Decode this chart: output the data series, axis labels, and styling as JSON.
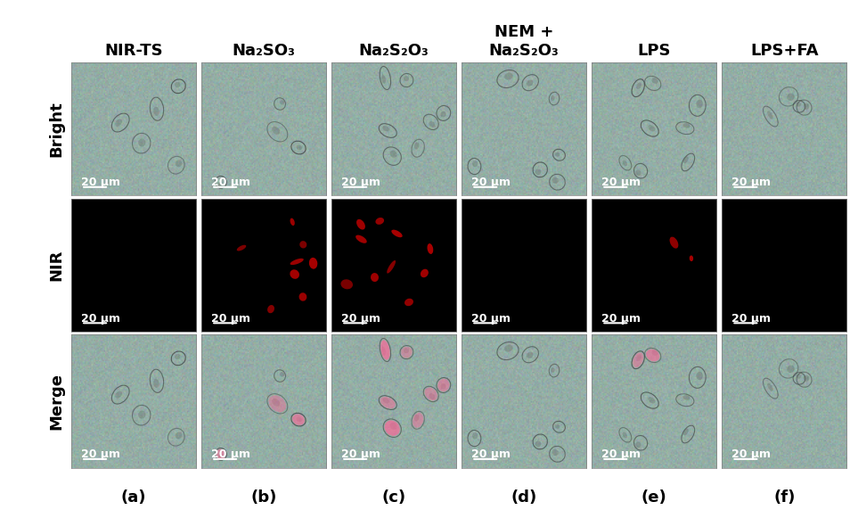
{
  "col_labels": [
    "NIR-TS",
    "Na₂SO₃",
    "Na₂S₂O₃",
    "NEM +\nNa₂S₂O₃",
    "LPS",
    "LPS+FA"
  ],
  "row_labels": [
    "Bright",
    "NIR",
    "Merge"
  ],
  "panel_labels": [
    "(a)",
    "(b)",
    "(c)",
    "(d)",
    "(e)",
    "(f)"
  ],
  "scale_bar_text": "20 μm",
  "background_color": "#ffffff",
  "cell_bright_color": "#8aaba0",
  "cell_dark_color": "#000000",
  "red_signal_color": "#cc0000",
  "merge_signal_color": "#ff69b4",
  "col_label_fontsize": 13,
  "row_label_fontsize": 13,
  "panel_label_fontsize": 13,
  "scale_bar_fontsize": 9,
  "fig_width": 9.63,
  "fig_height": 5.72,
  "n_cols": 6,
  "n_rows": 3
}
